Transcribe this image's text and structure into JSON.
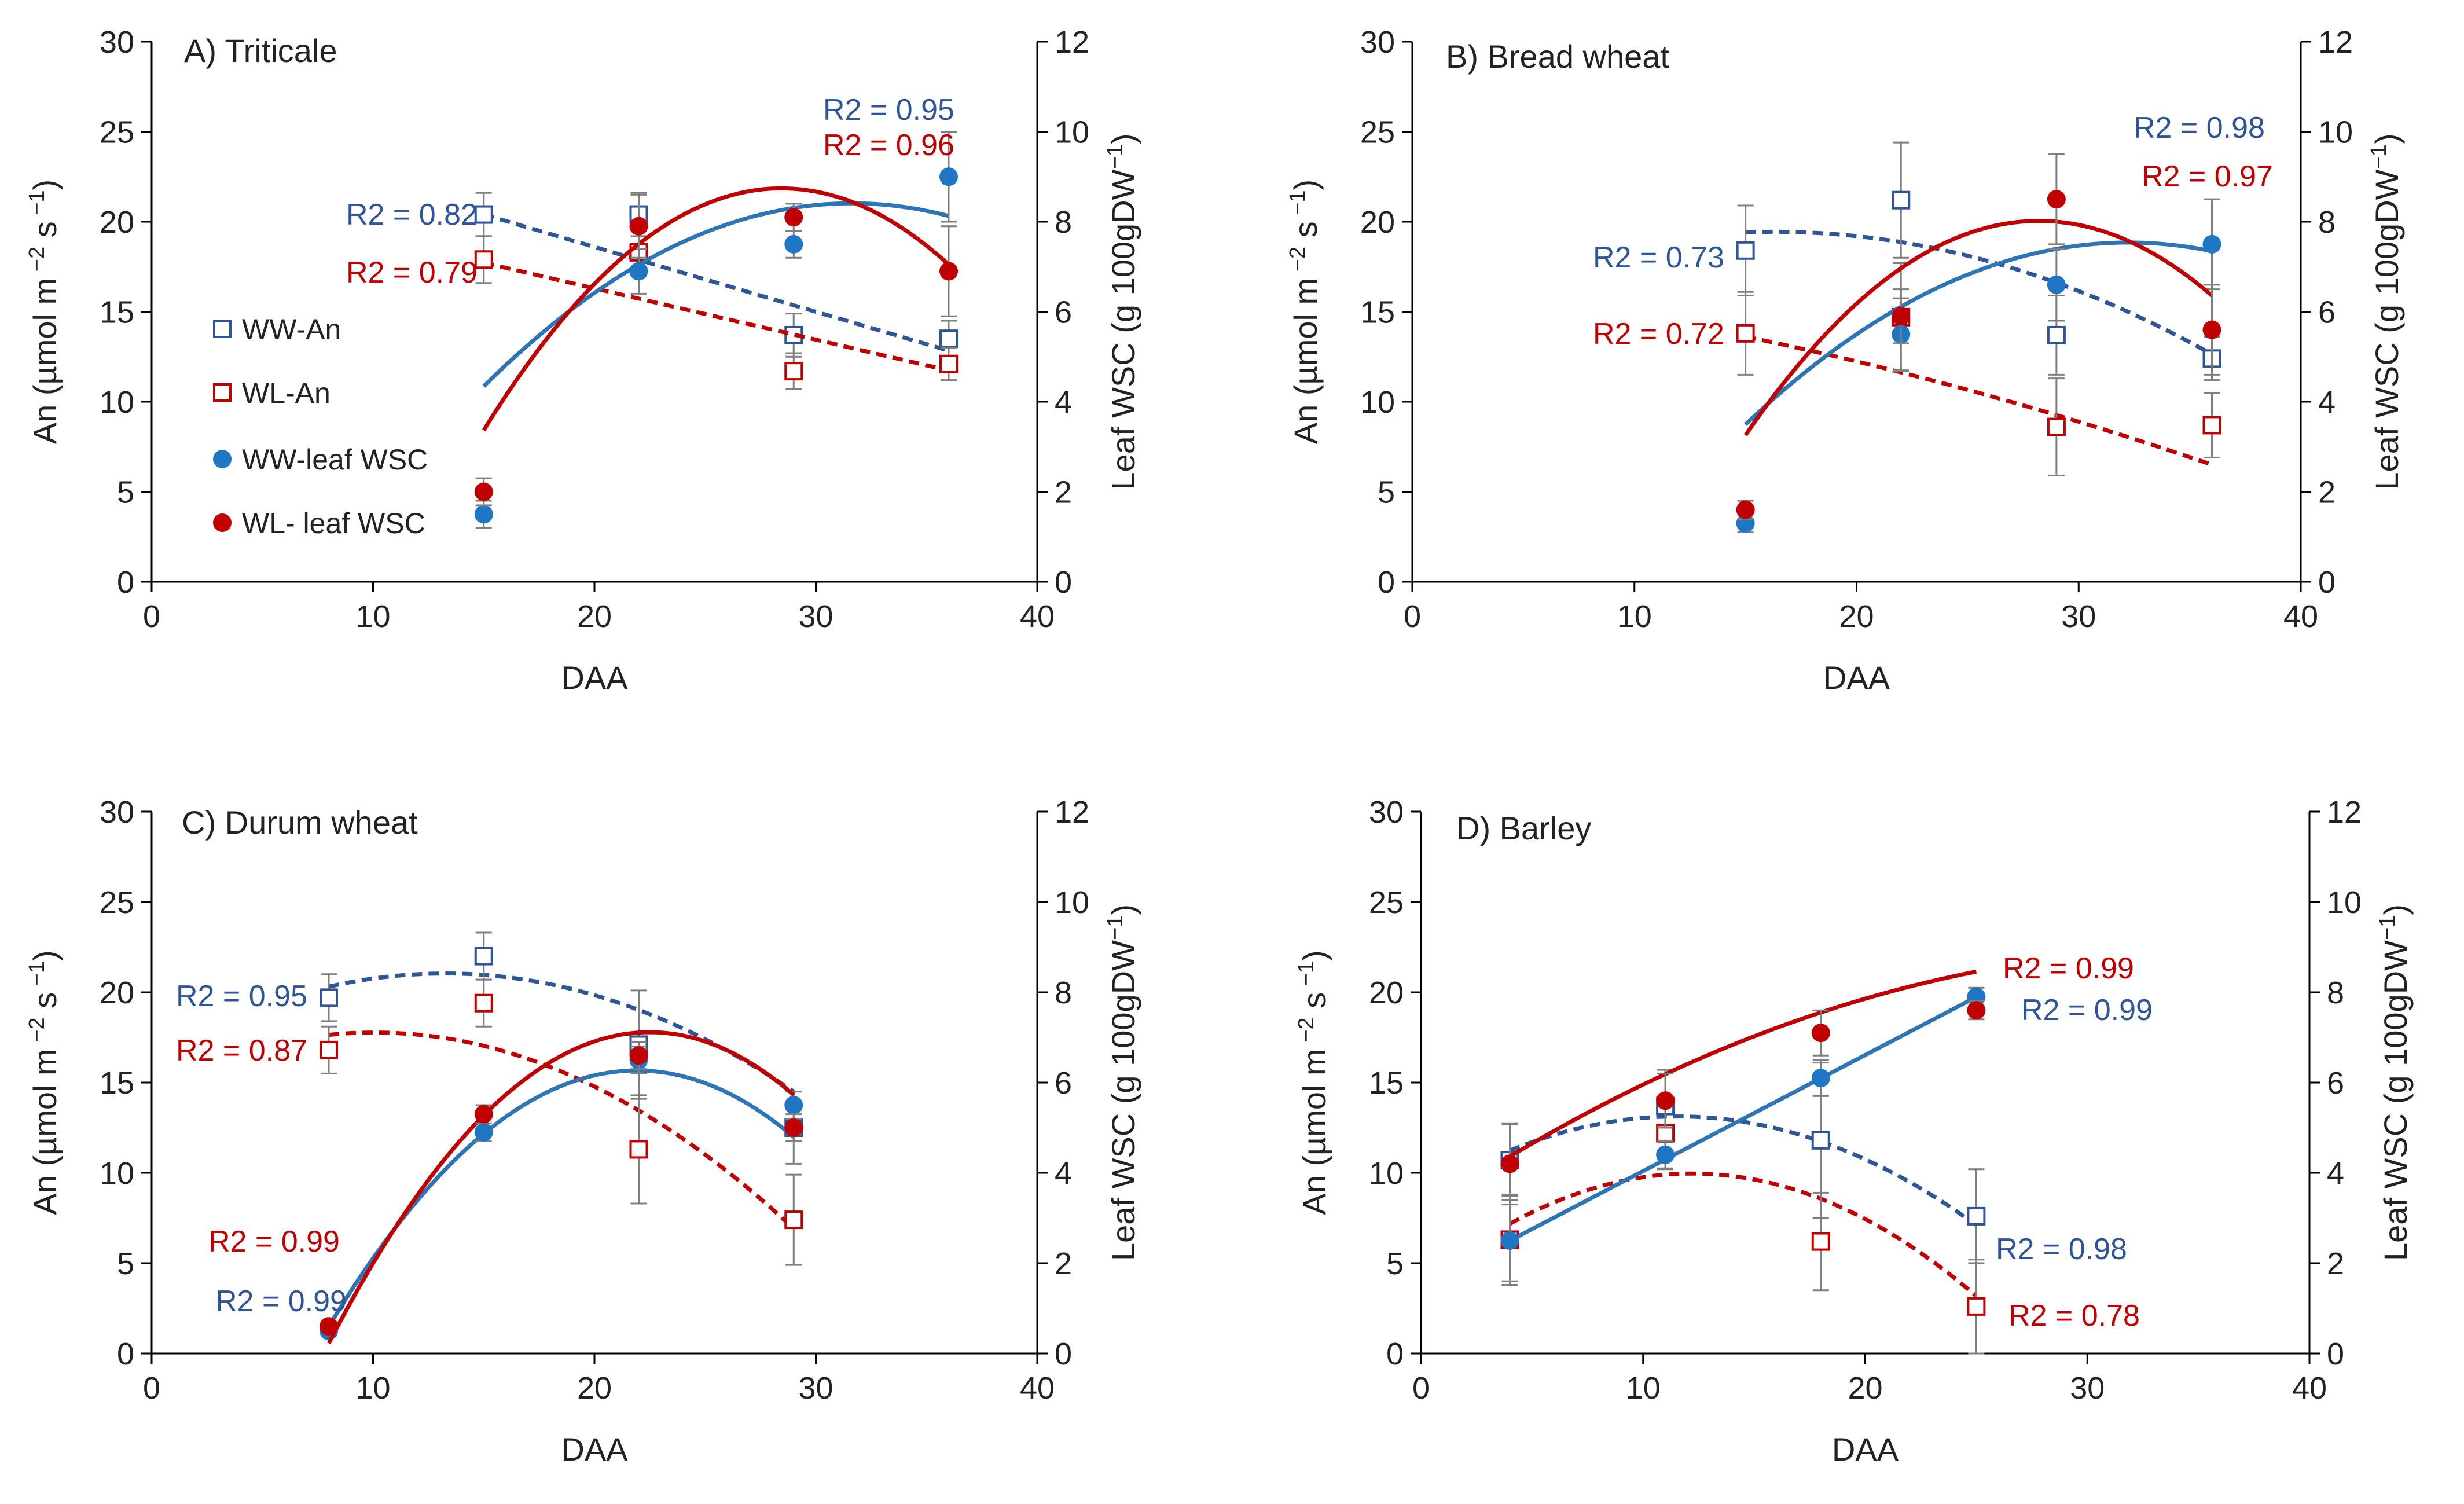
{
  "colors": {
    "ww": "#2f5597",
    "ww_fit": "#2e75b6",
    "wl": "#c00000",
    "marker_ww": "#1f77c4",
    "axis": "#000000",
    "errbar": "#7f7f7f"
  },
  "legend": {
    "items": [
      {
        "label": "WW-An",
        "marker": "open-square",
        "color": "#2f5597"
      },
      {
        "label": "WL-An",
        "marker": "open-square",
        "color": "#c00000"
      },
      {
        "label": "WW-leaf WSC",
        "marker": "filled-circle",
        "color": "#1f77c4"
      },
      {
        "label": "WL- leaf WSC",
        "marker": "filled-circle",
        "color": "#c00000"
      }
    ]
  },
  "chart_data": [
    {
      "type": "scatter",
      "title": "A) Triticale",
      "xlabel": "DAA",
      "ylabel": "An (µmol m",
      "ylabel_sup1": " −2",
      "ylabel_mid": " s",
      "ylabel_sup2": " −1",
      "ylabel_end": ")",
      "y2label": "Leaf WSC (g 100gDW",
      "y2label_sup": "−1",
      "y2label_end": ")",
      "xlim": [
        0,
        40
      ],
      "ylim": [
        0,
        30
      ],
      "y2lim": [
        0,
        12
      ],
      "xticks": [
        "0",
        "10",
        "20",
        "30",
        "40"
      ],
      "yticks": [
        "0",
        "5",
        "10",
        "15",
        "20",
        "25",
        "30"
      ],
      "y2ticks": [
        "0",
        "2",
        "4",
        "6",
        "8",
        "10",
        "12"
      ],
      "series": [
        {
          "name": "WW-An",
          "axis": "left",
          "x": [
            15,
            22,
            29,
            36
          ],
          "y": [
            20.4,
            20.4,
            13.7,
            13.5
          ],
          "err": [
            1.2,
            1.2,
            1.2,
            1.0
          ],
          "fit": [
            0.0,
            -0.36,
            25.8
          ],
          "fit_range": [
            15,
            36
          ],
          "r2": "R2 = 0.82"
        },
        {
          "name": "WL-An",
          "axis": "left",
          "x": [
            15,
            22,
            29,
            36
          ],
          "y": [
            17.9,
            18.3,
            11.7,
            12.1
          ],
          "err": [
            1.3,
            1.2,
            1.0,
            0.9
          ],
          "fit": [
            0.0,
            -0.285,
            22.0
          ],
          "fit_range": [
            15,
            36
          ],
          "r2": "R2 = 0.79"
        },
        {
          "name": "WW-leaf WSC",
          "axis": "right",
          "x": [
            15,
            22,
            29,
            36
          ],
          "y": [
            1.5,
            6.9,
            7.5,
            9.0
          ],
          "err": [
            0.3,
            0.5,
            0.3,
            1.0
          ],
          "fit": [
            -0.0147,
            0.93,
            -6.3
          ],
          "fit_range": [
            15,
            36
          ],
          "r2": "R2 = 0.95"
        },
        {
          "name": "WL- leaf WSC",
          "axis": "right",
          "x": [
            15,
            22,
            29,
            36
          ],
          "y": [
            2.0,
            7.9,
            8.1,
            6.9
          ],
          "err": [
            0.3,
            0.7,
            0.3,
            1.0
          ],
          "fit": [
            -0.0297,
            1.69,
            -15.3
          ],
          "fit_range": [
            15,
            36
          ],
          "r2": "R2 = 0.96"
        }
      ]
    },
    {
      "type": "scatter",
      "title": "B) Bread wheat",
      "xlabel": "DAA",
      "ylabel": "An (µmol m",
      "ylabel_sup1": " −2",
      "ylabel_mid": " s",
      "ylabel_sup2": " −1",
      "ylabel_end": ")",
      "y2label": "Leaf WSC (g 100gDW",
      "y2label_sup": "−1",
      "y2label_end": ")",
      "xlim": [
        0,
        40
      ],
      "ylim": [
        0,
        30
      ],
      "y2lim": [
        0,
        12
      ],
      "xticks": [
        "0",
        "10",
        "20",
        "30",
        "40"
      ],
      "yticks": [
        "0",
        "5",
        "10",
        "15",
        "20",
        "25",
        "30"
      ],
      "y2ticks": [
        "0",
        "2",
        "4",
        "6",
        "8",
        "10",
        "12"
      ],
      "series": [
        {
          "name": "WW-An",
          "axis": "left",
          "x": [
            15,
            22,
            29,
            36
          ],
          "y": [
            18.4,
            21.2,
            13.7,
            12.4
          ],
          "err": [
            2.5,
            3.2,
            2.2,
            1.2
          ],
          "fit": [
            -0.0175,
            0.57,
            14.8
          ],
          "fit_range": [
            15,
            36
          ],
          "r2": "R2 = 0.73"
        },
        {
          "name": "WL-An",
          "axis": "left",
          "x": [
            15,
            22,
            29,
            36
          ],
          "y": [
            13.8,
            14.7,
            8.6,
            8.7
          ],
          "err": [
            2.3,
            3.0,
            2.7,
            1.8
          ],
          "fit": [
            -0.0039,
            -0.14,
            16.6
          ],
          "fit_range": [
            15,
            36
          ],
          "r2": "R2 = 0.72"
        },
        {
          "name": "WW-leaf WSC",
          "axis": "right",
          "x": [
            15,
            22,
            29,
            36
          ],
          "y": [
            1.3,
            5.5,
            6.6,
            7.5
          ],
          "err": [
            0.2,
            0.8,
            0.8,
            1.0
          ],
          "fit": [
            -0.0136,
            0.877,
            -6.6
          ],
          "fit_range": [
            15,
            36
          ],
          "r2": "R2 = 0.98"
        },
        {
          "name": "WL- leaf WSC",
          "axis": "right",
          "x": [
            15,
            22,
            29,
            36
          ],
          "y": [
            1.6,
            5.9,
            8.5,
            5.6
          ],
          "err": [
            0.2,
            0.6,
            1.0,
            1.0
          ],
          "fit": [
            -0.0273,
            1.54,
            -13.7
          ],
          "fit_range": [
            15,
            36
          ],
          "r2": "R2 = 0.97"
        }
      ]
    },
    {
      "type": "scatter",
      "title": "C) Durum wheat",
      "xlabel": "DAA",
      "ylabel": "An (µmol m",
      "ylabel_sup1": " −2",
      "ylabel_mid": " s",
      "ylabel_sup2": " −1",
      "ylabel_end": ")",
      "y2label": "Leaf WSC (g 100gDW",
      "y2label_sup": "−1",
      "y2label_end": ")",
      "xlim": [
        0,
        40
      ],
      "ylim": [
        0,
        30
      ],
      "y2lim": [
        0,
        12
      ],
      "xticks": [
        "0",
        "10",
        "20",
        "30",
        "40"
      ],
      "yticks": [
        "0",
        "5",
        "10",
        "15",
        "20",
        "25",
        "30"
      ],
      "y2ticks": [
        "0",
        "2",
        "4",
        "6",
        "8",
        "10",
        "12"
      ],
      "series": [
        {
          "name": "WW-An",
          "axis": "left",
          "x": [
            8,
            15,
            22,
            29
          ],
          "y": [
            19.7,
            22.0,
            17.1,
            12.5
          ],
          "err": [
            1.3,
            1.3,
            3.0,
            2.0
          ],
          "fit": [
            -0.0264,
            0.7,
            16.4
          ],
          "fit_range": [
            8,
            29
          ],
          "r2": "R2 = 0.95"
        },
        {
          "name": "WL-An",
          "axis": "left",
          "x": [
            8,
            15,
            22,
            29
          ],
          "y": [
            16.8,
            19.4,
            11.3,
            7.4
          ],
          "err": [
            1.3,
            1.3,
            3.0,
            2.5
          ],
          "fit": [
            -0.0303,
            0.61,
            14.7
          ],
          "fit_range": [
            8,
            29
          ],
          "r2": "R2 = 0.87"
        },
        {
          "name": "WW-leaf WSC",
          "axis": "right",
          "x": [
            8,
            15,
            22,
            29
          ],
          "y": [
            0.5,
            4.9,
            6.5,
            5.5
          ],
          "err": [
            0.1,
            0.2,
            0.3,
            0.3
          ],
          "fit": [
            -0.0293,
            1.284,
            -7.8
          ],
          "fit_range": [
            8,
            29
          ],
          "r2": "R2 = 0.99"
        },
        {
          "name": "WL- leaf WSC",
          "axis": "right",
          "x": [
            8,
            15,
            22,
            29
          ],
          "y": [
            0.6,
            5.3,
            6.6,
            5.0
          ],
          "err": [
            0.1,
            0.2,
            0.3,
            0.3
          ],
          "fit": [
            -0.0328,
            1.4756,
            -9.48
          ],
          "fit_range": [
            8,
            29
          ],
          "r2": "R2 = 0.99"
        }
      ]
    },
    {
      "type": "scatter",
      "title": "D) Barley",
      "xlabel": "DAA",
      "ylabel": "An (µmol m",
      "ylabel_sup1": " −2",
      "ylabel_mid": " s",
      "ylabel_sup2": " −1",
      "ylabel_end": ")",
      "y2label": "Leaf WSC (g 100gDW",
      "y2label_sup": "−1",
      "y2label_end": ")",
      "xlim": [
        0,
        40
      ],
      "ylim": [
        0,
        30
      ],
      "y2lim": [
        0,
        12
      ],
      "xticks": [
        "0",
        "10",
        "20",
        "30",
        "40"
      ],
      "yticks": [
        "0",
        "5",
        "10",
        "15",
        "20",
        "25",
        "30"
      ],
      "y2ticks": [
        "0",
        "2",
        "4",
        "6",
        "8",
        "10",
        "12"
      ],
      "series": [
        {
          "name": "WW-An",
          "axis": "left",
          "x": [
            4,
            11,
            18,
            25
          ],
          "y": [
            10.7,
            13.7,
            11.8,
            7.6
          ],
          "err": [
            2.0,
            2.0,
            4.3,
            2.6
          ],
          "fit": [
            -0.0332,
            0.7664,
            8.7
          ],
          "fit_range": [
            4,
            25
          ],
          "r2": "R2 = 0.98"
        },
        {
          "name": "WL-An",
          "axis": "left",
          "x": [
            4,
            11,
            18,
            25
          ],
          "y": [
            6.3,
            12.2,
            6.2,
            2.6
          ],
          "err": [
            2.5,
            2.0,
            2.7,
            2.6
          ],
          "fit": [
            -0.0414,
            1.01,
            3.8
          ],
          "fit_range": [
            4,
            25
          ],
          "r2": "R2 = 0.78"
        },
        {
          "name": "WW-leaf WSC",
          "axis": "right",
          "x": [
            4,
            11,
            18,
            25
          ],
          "y": [
            2.5,
            4.4,
            6.1,
            7.9
          ],
          "err": [
            0.9,
            0.3,
            0.4,
            0.2
          ],
          "fit": [
            0.0,
            0.257,
            1.47
          ],
          "fit_range": [
            4,
            25
          ],
          "r2": "R2 = 0.99"
        },
        {
          "name": "WL- leaf WSC",
          "axis": "right",
          "x": [
            4,
            11,
            18,
            25
          ],
          "y": [
            4.2,
            5.6,
            7.1,
            7.6
          ],
          "err": [
            0.9,
            0.6,
            0.5,
            0.2
          ],
          "fit": [
            -0.00471,
            0.3316,
            3.11
          ],
          "fit_range": [
            4,
            25
          ],
          "r2": "R2 = 0.99"
        }
      ]
    }
  ]
}
